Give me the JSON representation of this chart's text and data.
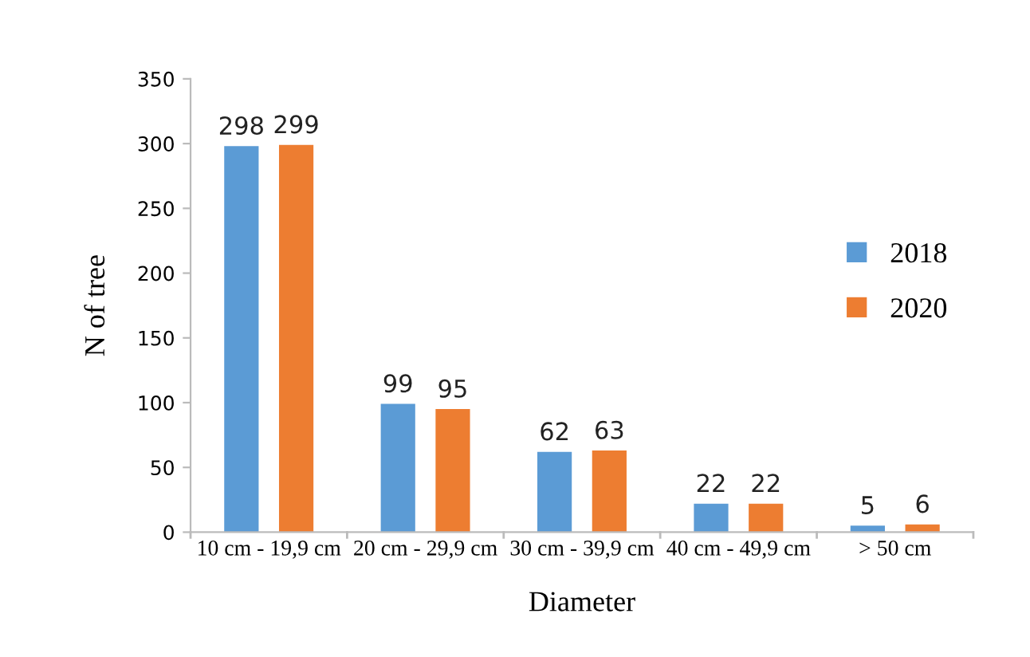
{
  "chart_data": {
    "type": "bar",
    "xlabel": "Diameter",
    "ylabel": "N of tree",
    "categories": [
      "10 cm - 19,9 cm",
      "20 cm - 29,9 cm",
      "30 cm - 39,9 cm",
      "40 cm - 49,9 cm",
      "> 50 cm"
    ],
    "series": [
      {
        "name": "2018",
        "color": "#5b9bd5",
        "values": [
          298,
          99,
          62,
          22,
          5
        ]
      },
      {
        "name": "2020",
        "color": "#ed7d31",
        "values": [
          299,
          95,
          63,
          22,
          6
        ]
      }
    ],
    "ylim": [
      0,
      350
    ],
    "yticks": [
      0,
      50,
      100,
      150,
      200,
      250,
      300,
      350
    ],
    "data_labels": true,
    "grid": false,
    "legend": "right"
  }
}
